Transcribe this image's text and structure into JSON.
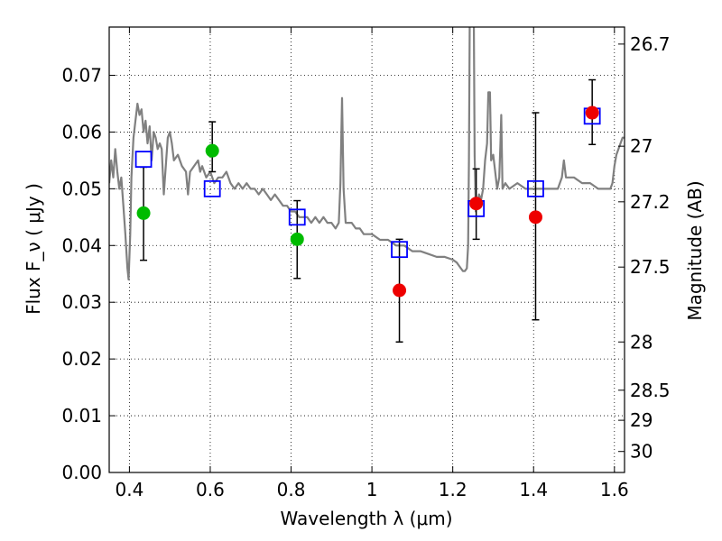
{
  "chart_data": {
    "type": "scatter",
    "xlabel": "Wavelength  λ (μm)",
    "ylabel": "Flux  F_ν  ( μJy )",
    "ylabel_right": "Magnitude (AB)",
    "xlim": [
      0.35,
      1.625
    ],
    "ylim": [
      0.0,
      0.0785
    ],
    "grid": true,
    "x_ticks": [
      {
        "value": 0.4,
        "label": "0.4"
      },
      {
        "value": 0.6,
        "label": "0.6"
      },
      {
        "value": 0.8,
        "label": "0.8"
      },
      {
        "value": 1.0,
        "label": "1"
      },
      {
        "value": 1.2,
        "label": "1.2"
      },
      {
        "value": 1.4,
        "label": "1.4"
      },
      {
        "value": 1.6,
        "label": "1.6"
      }
    ],
    "y_ticks": [
      {
        "value": 0.0,
        "label": "0.00"
      },
      {
        "value": 0.01,
        "label": "0.01"
      },
      {
        "value": 0.02,
        "label": "0.02"
      },
      {
        "value": 0.03,
        "label": "0.03"
      },
      {
        "value": 0.04,
        "label": "0.04"
      },
      {
        "value": 0.05,
        "label": "0.05"
      },
      {
        "value": 0.06,
        "label": "0.06"
      },
      {
        "value": 0.07,
        "label": "0.07"
      }
    ],
    "right_ticks": [
      {
        "flux": 0.0755,
        "label": "26.7"
      },
      {
        "flux": 0.0575,
        "label": "27"
      },
      {
        "flux": 0.0477,
        "label": "27.2"
      },
      {
        "flux": 0.0362,
        "label": "27.5"
      },
      {
        "flux": 0.023,
        "label": "28"
      },
      {
        "flux": 0.0145,
        "label": "28.5"
      },
      {
        "flux": 0.0092,
        "label": "29"
      },
      {
        "flux": 0.0037,
        "label": "30"
      }
    ],
    "series": [
      {
        "kind": "model_spectrum",
        "color": "#808080",
        "points": [
          [
            0.35,
            0.051
          ],
          [
            0.355,
            0.055
          ],
          [
            0.36,
            0.052
          ],
          [
            0.365,
            0.057
          ],
          [
            0.37,
            0.053
          ],
          [
            0.375,
            0.05
          ],
          [
            0.38,
            0.052
          ],
          [
            0.385,
            0.047
          ],
          [
            0.39,
            0.042
          ],
          [
            0.395,
            0.036
          ],
          [
            0.398,
            0.034
          ],
          [
            0.402,
            0.042
          ],
          [
            0.405,
            0.052
          ],
          [
            0.41,
            0.059
          ],
          [
            0.415,
            0.062
          ],
          [
            0.42,
            0.065
          ],
          [
            0.425,
            0.063
          ],
          [
            0.43,
            0.064
          ],
          [
            0.435,
            0.06
          ],
          [
            0.44,
            0.062
          ],
          [
            0.445,
            0.058
          ],
          [
            0.45,
            0.061
          ],
          [
            0.455,
            0.055
          ],
          [
            0.46,
            0.06
          ],
          [
            0.465,
            0.059
          ],
          [
            0.47,
            0.057
          ],
          [
            0.475,
            0.058
          ],
          [
            0.48,
            0.057
          ],
          [
            0.485,
            0.049
          ],
          [
            0.49,
            0.054
          ],
          [
            0.495,
            0.059
          ],
          [
            0.5,
            0.06
          ],
          [
            0.505,
            0.058
          ],
          [
            0.51,
            0.055
          ],
          [
            0.52,
            0.056
          ],
          [
            0.53,
            0.054
          ],
          [
            0.54,
            0.053
          ],
          [
            0.545,
            0.049
          ],
          [
            0.55,
            0.053
          ],
          [
            0.56,
            0.054
          ],
          [
            0.57,
            0.055
          ],
          [
            0.575,
            0.053
          ],
          [
            0.58,
            0.054
          ],
          [
            0.59,
            0.052
          ],
          [
            0.6,
            0.053
          ],
          [
            0.61,
            0.051
          ],
          [
            0.62,
            0.052
          ],
          [
            0.63,
            0.052
          ],
          [
            0.64,
            0.053
          ],
          [
            0.65,
            0.051
          ],
          [
            0.66,
            0.05
          ],
          [
            0.67,
            0.051
          ],
          [
            0.68,
            0.05
          ],
          [
            0.69,
            0.051
          ],
          [
            0.7,
            0.05
          ],
          [
            0.71,
            0.05
          ],
          [
            0.72,
            0.049
          ],
          [
            0.73,
            0.05
          ],
          [
            0.74,
            0.049
          ],
          [
            0.75,
            0.048
          ],
          [
            0.76,
            0.049
          ],
          [
            0.77,
            0.048
          ],
          [
            0.78,
            0.047
          ],
          [
            0.79,
            0.047
          ],
          [
            0.8,
            0.046
          ],
          [
            0.81,
            0.046
          ],
          [
            0.82,
            0.045
          ],
          [
            0.83,
            0.045
          ],
          [
            0.84,
            0.045
          ],
          [
            0.85,
            0.044
          ],
          [
            0.86,
            0.045
          ],
          [
            0.87,
            0.044
          ],
          [
            0.88,
            0.045
          ],
          [
            0.89,
            0.044
          ],
          [
            0.9,
            0.044
          ],
          [
            0.91,
            0.043
          ],
          [
            0.918,
            0.044
          ],
          [
            0.922,
            0.051
          ],
          [
            0.926,
            0.066
          ],
          [
            0.93,
            0.05
          ],
          [
            0.935,
            0.044
          ],
          [
            0.95,
            0.044
          ],
          [
            0.96,
            0.043
          ],
          [
            0.97,
            0.043
          ],
          [
            0.98,
            0.042
          ],
          [
            1.0,
            0.042
          ],
          [
            1.02,
            0.041
          ],
          [
            1.04,
            0.041
          ],
          [
            1.06,
            0.04
          ],
          [
            1.08,
            0.04
          ],
          [
            1.1,
            0.039
          ],
          [
            1.12,
            0.039
          ],
          [
            1.14,
            0.0385
          ],
          [
            1.16,
            0.038
          ],
          [
            1.18,
            0.038
          ],
          [
            1.2,
            0.0375
          ],
          [
            1.21,
            0.037
          ],
          [
            1.22,
            0.036
          ],
          [
            1.225,
            0.0355
          ],
          [
            1.23,
            0.0355
          ],
          [
            1.235,
            0.036
          ],
          [
            1.238,
            0.04
          ],
          [
            1.24,
            0.055
          ],
          [
            1.242,
            0.08
          ],
          [
            1.252,
            0.08
          ],
          [
            1.254,
            0.056
          ],
          [
            1.257,
            0.046
          ],
          [
            1.26,
            0.047
          ],
          [
            1.265,
            0.049
          ],
          [
            1.27,
            0.048
          ],
          [
            1.275,
            0.05
          ],
          [
            1.28,
            0.055
          ],
          [
            1.285,
            0.058
          ],
          [
            1.288,
            0.067
          ],
          [
            1.292,
            0.067
          ],
          [
            1.295,
            0.055
          ],
          [
            1.3,
            0.056
          ],
          [
            1.305,
            0.053
          ],
          [
            1.31,
            0.05
          ],
          [
            1.315,
            0.052
          ],
          [
            1.318,
            0.058
          ],
          [
            1.32,
            0.063
          ],
          [
            1.323,
            0.05
          ],
          [
            1.33,
            0.051
          ],
          [
            1.34,
            0.05
          ],
          [
            1.36,
            0.051
          ],
          [
            1.38,
            0.05
          ],
          [
            1.4,
            0.05
          ],
          [
            1.42,
            0.05
          ],
          [
            1.44,
            0.05
          ],
          [
            1.46,
            0.05
          ],
          [
            1.47,
            0.052
          ],
          [
            1.475,
            0.055
          ],
          [
            1.48,
            0.052
          ],
          [
            1.5,
            0.052
          ],
          [
            1.52,
            0.051
          ],
          [
            1.54,
            0.051
          ],
          [
            1.56,
            0.05
          ],
          [
            1.58,
            0.05
          ],
          [
            1.59,
            0.05
          ],
          [
            1.595,
            0.051
          ],
          [
            1.6,
            0.054
          ],
          [
            1.605,
            0.056
          ],
          [
            1.61,
            0.057
          ],
          [
            1.62,
            0.059
          ],
          [
            1.625,
            0.059
          ]
        ]
      },
      {
        "kind": "model_photometry",
        "marker": "open-square",
        "color": "#0000ff",
        "points": [
          [
            0.435,
            0.0552
          ],
          [
            0.605,
            0.05
          ],
          [
            0.815,
            0.045
          ],
          [
            1.068,
            0.0393
          ],
          [
            1.258,
            0.0465
          ],
          [
            1.405,
            0.05
          ],
          [
            1.545,
            0.0628
          ]
        ]
      },
      {
        "kind": "measured_photometry",
        "marker": "filled-circle",
        "points": [
          {
            "x": 0.435,
            "y": 0.0457,
            "yerr_low": 0.0374,
            "yerr_high": 0.0538,
            "color": "#00bb00"
          },
          {
            "x": 0.605,
            "y": 0.0567,
            "yerr_low": 0.053,
            "yerr_high": 0.0618,
            "color": "#00bb00"
          },
          {
            "x": 0.815,
            "y": 0.0411,
            "yerr_low": 0.0342,
            "yerr_high": 0.0479,
            "color": "#00bb00"
          },
          {
            "x": 1.068,
            "y": 0.0321,
            "yerr_low": 0.023,
            "yerr_high": 0.0411,
            "color": "#ee0000"
          },
          {
            "x": 1.258,
            "y": 0.0474,
            "yerr_low": 0.0411,
            "yerr_high": 0.0535,
            "color": "#ee0000"
          },
          {
            "x": 1.405,
            "y": 0.045,
            "yerr_low": 0.0269,
            "yerr_high": 0.0634,
            "color": "#ee0000"
          },
          {
            "x": 1.545,
            "y": 0.0634,
            "yerr_low": 0.0578,
            "yerr_high": 0.0692,
            "color": "#ee0000"
          }
        ]
      }
    ]
  }
}
